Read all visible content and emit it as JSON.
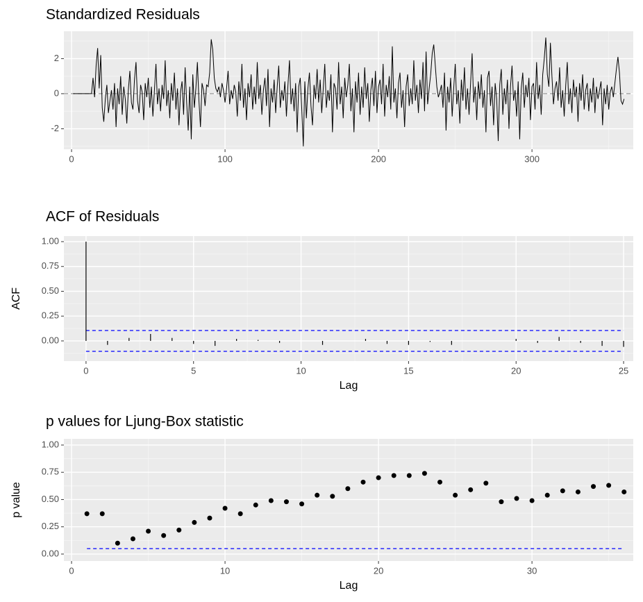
{
  "chart_data": [
    {
      "type": "line",
      "title": "Standardized Residuals",
      "color": "#000000",
      "reference_line": 0,
      "xlim": [
        -5,
        366
      ],
      "ylim": [
        -3.17,
        3.56
      ],
      "xticks": [
        0,
        100,
        200,
        300
      ],
      "yticks": [
        -2,
        0,
        2
      ],
      "grid": true,
      "x": [
        1,
        2,
        3,
        4,
        5,
        6,
        7,
        8,
        9,
        10,
        11,
        12,
        13,
        14,
        15,
        16,
        17,
        18,
        19,
        20,
        21,
        22,
        23,
        24,
        25,
        26,
        27,
        28,
        29,
        30,
        31,
        32,
        33,
        34,
        35,
        36,
        37,
        38,
        39,
        40,
        41,
        42,
        43,
        44,
        45,
        46,
        47,
        48,
        49,
        50,
        51,
        52,
        53,
        54,
        55,
        56,
        57,
        58,
        59,
        60,
        61,
        62,
        63,
        64,
        65,
        66,
        67,
        68,
        69,
        70,
        71,
        72,
        73,
        74,
        75,
        76,
        77,
        78,
        79,
        80,
        81,
        82,
        83,
        84,
        85,
        86,
        87,
        88,
        89,
        90,
        91,
        92,
        93,
        94,
        95,
        96,
        97,
        98,
        99,
        100,
        101,
        102,
        103,
        104,
        105,
        106,
        107,
        108,
        109,
        110,
        111,
        112,
        113,
        114,
        115,
        116,
        117,
        118,
        119,
        120,
        121,
        122,
        123,
        124,
        125,
        126,
        127,
        128,
        129,
        130,
        131,
        132,
        133,
        134,
        135,
        136,
        137,
        138,
        139,
        140,
        141,
        142,
        143,
        144,
        145,
        146,
        147,
        148,
        149,
        150,
        151,
        152,
        153,
        154,
        155,
        156,
        157,
        158,
        159,
        160,
        161,
        162,
        163,
        164,
        165,
        166,
        167,
        168,
        169,
        170,
        171,
        172,
        173,
        174,
        175,
        176,
        177,
        178,
        179,
        180,
        181,
        182,
        183,
        184,
        185,
        186,
        187,
        188,
        189,
        190,
        191,
        192,
        193,
        194,
        195,
        196,
        197,
        198,
        199,
        200,
        201,
        202,
        203,
        204,
        205,
        206,
        207,
        208,
        209,
        210,
        211,
        212,
        213,
        214,
        215,
        216,
        217,
        218,
        219,
        220,
        221,
        222,
        223,
        224,
        225,
        226,
        227,
        228,
        229,
        230,
        231,
        232,
        233,
        234,
        235,
        236,
        237,
        238,
        239,
        240,
        241,
        242,
        243,
        244,
        245,
        246,
        247,
        248,
        249,
        250,
        251,
        252,
        253,
        254,
        255,
        256,
        257,
        258,
        259,
        260,
        261,
        262,
        263,
        264,
        265,
        266,
        267,
        268,
        269,
        270,
        271,
        272,
        273,
        274,
        275,
        276,
        277,
        278,
        279,
        280,
        281,
        282,
        283,
        284,
        285,
        286,
        287,
        288,
        289,
        290,
        291,
        292,
        293,
        294,
        295,
        296,
        297,
        298,
        299,
        300,
        301,
        302,
        303,
        304,
        305,
        306,
        307,
        308,
        309,
        310,
        311,
        312,
        313,
        314,
        315,
        316,
        317,
        318,
        319,
        320,
        321,
        322,
        323,
        324,
        325,
        326,
        327,
        328,
        329,
        330,
        331,
        332,
        333,
        334,
        335,
        336,
        337,
        338,
        339,
        340,
        341,
        342,
        343,
        344,
        345,
        346,
        347,
        348,
        349,
        350,
        351,
        352,
        353,
        354,
        355,
        356,
        357,
        358,
        359,
        360
      ],
      "values": [
        0,
        0,
        0,
        0,
        0,
        0,
        0,
        0,
        0,
        0,
        0,
        0,
        0,
        0.9,
        -0.2,
        1.6,
        2.6,
        0.3,
        2.2,
        -0.8,
        -1.6,
        -0.3,
        0.5,
        -1.1,
        -0.4,
        0.2,
        -0.9,
        0.6,
        -1.9,
        0.3,
        -0.6,
        1.0,
        -1.2,
        0.4,
        -0.3,
        -1.7,
        0.2,
        1.3,
        -0.5,
        -0.9,
        0.8,
        1.8,
        -0.4,
        -1.1,
        0.5,
        0.1,
        -1.5,
        0.6,
        -0.2,
        0.9,
        -0.8,
        0.4,
        -1.3,
        0.2,
        1.7,
        -0.6,
        0.3,
        -1.0,
        0.5,
        -0.3,
        1.9,
        -0.7,
        0.2,
        -1.4,
        0.6,
        -0.4,
        1.2,
        -0.9,
        0.3,
        -1.8,
        0.1,
        0.7,
        -1.2,
        1.5,
        -0.5,
        -2.1,
        0.4,
        -2.6,
        1.1,
        -0.8,
        0.3,
        1.8,
        -0.4,
        -1.9,
        0.6,
        0.2,
        -0.7,
        0.5,
        0.4,
        1.2,
        3.1,
        2.5,
        0.9,
        0.3,
        0.1,
        0.4,
        -0.2,
        0.6,
        0.2,
        -0.5,
        0.3,
        1.3,
        -0.6,
        0.2,
        -0.3,
        0.5,
        0.1,
        -1.3,
        0.7,
        -0.4,
        1.7,
        -0.8,
        0.3,
        -1.5,
        0.6,
        -0.2,
        1.1,
        -0.9,
        0.4,
        -0.6,
        1.8,
        -0.3,
        0.5,
        -1.2,
        0.2,
        0.9,
        -0.7,
        1.4,
        -1.9,
        0.3,
        -0.5,
        0.8,
        -1.1,
        0.4,
        1.6,
        -0.8,
        0.2,
        -0.4,
        0.7,
        -1.3,
        0.5,
        1.9,
        -0.6,
        0.3,
        -1.0,
        0.6,
        -2.2,
        0.4,
        0.9,
        -0.9,
        -3.0,
        0.7,
        -1.4,
        0.3,
        1.2,
        -0.7,
        -1.8,
        0.5,
        -0.3,
        1.4,
        -0.5,
        0.8,
        -1.1,
        0.3,
        1.7,
        -0.8,
        0.2,
        -0.4,
        1.1,
        -2.2,
        0.6,
        0.3,
        -0.9,
        1.8,
        -0.6,
        0.4,
        -1.4,
        0.9,
        -0.2,
        0.5,
        1.7,
        -1.0,
        0.3,
        -2.2,
        0.7,
        -0.5,
        1.2,
        -1.2,
        0.4,
        -0.8,
        1.5,
        -0.3,
        0.6,
        -1.6,
        0.2,
        0.9,
        -0.7,
        1.3,
        -1.1,
        0.4,
        0.8,
        -0.6,
        1.7,
        -1.3,
        0.5,
        -0.2,
        1.0,
        -0.9,
        2.7,
        -0.5,
        0.3,
        -1.4,
        0.6,
        1.2,
        -0.8,
        0.2,
        -1.9,
        0.4,
        1.1,
        -0.7,
        0.3,
        -0.6,
        1.9,
        -0.4,
        0.5,
        -1.1,
        0.8,
        -0.3,
        1.8,
        -1.0,
        2.4,
        -0.6,
        0.3,
        1.1,
        2.3,
        2.8,
        1.6,
        0.4,
        -0.2,
        0.1,
        0.5,
        -0.8,
        1.2,
        -2.1,
        0.4,
        -0.5,
        0.9,
        -1.3,
        0.3,
        1.7,
        -0.6,
        0.2,
        -1.7,
        0.8,
        -0.4,
        1.5,
        -0.9,
        0.3,
        -1.2,
        0.6,
        2.3,
        -0.5,
        0.4,
        -1.5,
        0.7,
        -0.3,
        1.1,
        -0.8,
        0.2,
        -2.2,
        0.9,
        1.3,
        -0.7,
        0.4,
        -1.8,
        0.6,
        -0.3,
        -2.7,
        0.5,
        1.4,
        -1.2,
        0.3,
        -0.6,
        0.8,
        -2.0,
        0.4,
        1.6,
        -0.4,
        0.2,
        -1.3,
        0.7,
        -2.6,
        0.3,
        1.2,
        -0.8,
        0.5,
        -0.2,
        0.9,
        -1.5,
        0.4,
        0.6,
        -0.9,
        1.8,
        -0.3,
        0.5,
        -1.2,
        1.1,
        2.0,
        3.2,
        1.1,
        0.4,
        2.9,
        1.0,
        -0.6,
        0.3,
        0.7,
        -0.4,
        1.5,
        -0.8,
        0.2,
        -1.3,
        0.5,
        1.8,
        -0.6,
        0.3,
        -1.1,
        0.8,
        -0.2,
        0.4,
        -1.6,
        0.6,
        -0.4,
        1.1,
        -0.9,
        0.2,
        0.6,
        -1.0,
        0.3,
        -0.5,
        0.9,
        -1.1,
        0.4,
        -0.3,
        0.2,
        0.7,
        -1.8,
        0.3,
        -0.6,
        0.5,
        -0.9,
        0.1,
        0.4,
        -0.2,
        0.6,
        1.4,
        2.1,
        1.2,
        -0.4,
        -0.6,
        -0.3
      ]
    },
    {
      "type": "stem",
      "title": "ACF of Residuals",
      "x_label": "Lag",
      "y_label": "ACF",
      "color": "#000000",
      "conf_limits": [
        0.105,
        -0.105
      ],
      "conf_color": "#0000ff",
      "xlim": [
        -1.03,
        25.45
      ],
      "ylim": [
        -0.203,
        1.056
      ],
      "xticks": [
        0,
        5,
        10,
        15,
        20,
        25
      ],
      "yticks": [
        {
          "value": 0,
          "label": "0.00"
        },
        0.25,
        {
          "value": 0.5,
          "label": "0.50"
        },
        0.75,
        {
          "value": 1,
          "label": "1.00"
        }
      ],
      "grid": true,
      "x": [
        0,
        1,
        2,
        3,
        4,
        5,
        6,
        7,
        8,
        9,
        10,
        11,
        12,
        13,
        14,
        15,
        16,
        17,
        18,
        19,
        20,
        21,
        22,
        23,
        24,
        25
      ],
      "values": [
        1,
        -0.04,
        0.03,
        0.07,
        0.03,
        -0.03,
        -0.05,
        0.02,
        0.01,
        -0.02,
        0,
        -0.04,
        0,
        0.02,
        -0.03,
        -0.04,
        -0.01,
        -0.04,
        0,
        0,
        0.02,
        -0.02,
        0.04,
        -0.02,
        -0.05,
        -0.06
      ]
    },
    {
      "type": "scatter",
      "title": "p values for Ljung-Box statistic",
      "x_label": "Lag",
      "y_label": "p value",
      "color": "#000000",
      "significance_level": 0.05,
      "conf_color": "#0000ff",
      "xlim": [
        -0.5,
        36.6
      ],
      "ylim": [
        -0.064,
        1.057
      ],
      "xticks": [
        0,
        10,
        20,
        30
      ],
      "yticks": [
        {
          "value": 0,
          "label": "0.00"
        },
        0.25,
        {
          "value": 0.5,
          "label": "0.50"
        },
        0.75,
        {
          "value": 1,
          "label": "1.00"
        }
      ],
      "grid": true,
      "x": [
        1,
        2,
        3,
        4,
        5,
        6,
        7,
        8,
        9,
        10,
        11,
        12,
        13,
        14,
        15,
        16,
        17,
        18,
        19,
        20,
        21,
        22,
        23,
        24,
        25,
        26,
        27,
        28,
        29,
        30,
        31,
        32,
        33,
        34,
        35,
        36
      ],
      "values": [
        0.37,
        0.37,
        0.1,
        0.14,
        0.21,
        0.17,
        0.22,
        0.29,
        0.33,
        0.42,
        0.37,
        0.45,
        0.49,
        0.48,
        0.46,
        0.54,
        0.53,
        0.6,
        0.66,
        0.7,
        0.72,
        0.72,
        0.74,
        0.66,
        0.54,
        0.59,
        0.65,
        0.48,
        0.51,
        0.49,
        0.54,
        0.58,
        0.57,
        0.62,
        0.63,
        0.57
      ]
    }
  ]
}
